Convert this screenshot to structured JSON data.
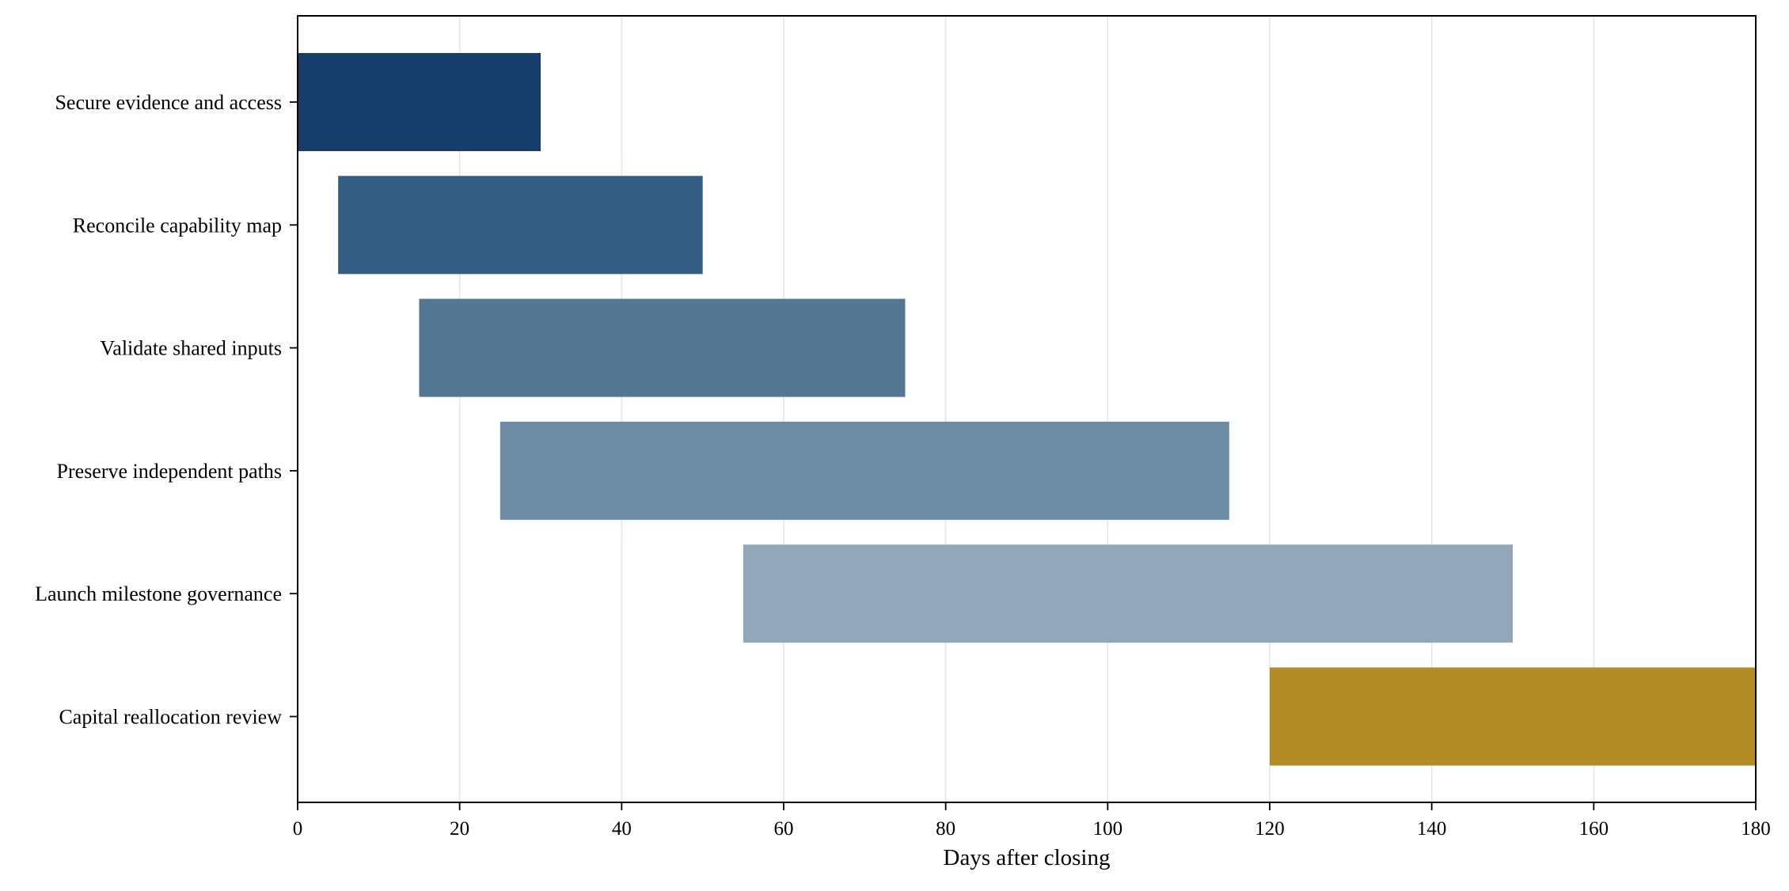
{
  "chart_data": {
    "type": "bar",
    "orientation": "horizontal",
    "title": "",
    "xlabel": "Days after closing",
    "ylabel": "",
    "xlim": [
      0,
      180
    ],
    "xticks": [
      0,
      20,
      40,
      60,
      80,
      100,
      120,
      140,
      160,
      180
    ],
    "xtick_labels": [
      "0",
      "20",
      "40",
      "60",
      "80",
      "100",
      "120",
      "140",
      "160",
      "180"
    ],
    "grid": "vertical",
    "legend": "none",
    "tasks": [
      {
        "label": "Secure evidence and access",
        "start": 0,
        "end": 30,
        "color": "#143b69"
      },
      {
        "label": "Reconcile capability map",
        "start": 5,
        "end": 50,
        "color": "#315b82"
      },
      {
        "label": "Validate shared inputs",
        "start": 15,
        "end": 75,
        "color": "#527593"
      },
      {
        "label": "Preserve independent paths",
        "start": 25,
        "end": 115,
        "color": "#6c8aa5"
      },
      {
        "label": "Launch milestone governance",
        "start": 55,
        "end": 150,
        "color": "#91a6b9"
      },
      {
        "label": "Capital reallocation review",
        "start": 120,
        "end": 180,
        "color": "#b38b22"
      }
    ]
  }
}
